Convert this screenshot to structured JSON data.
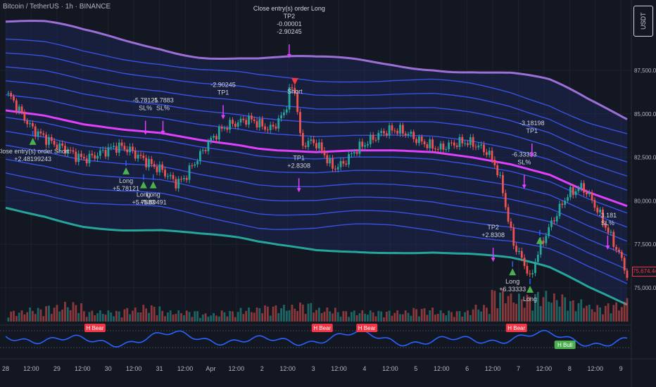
{
  "header": {
    "symbol_title": "Bitcoin / TetherUS · 1h · BINANCE",
    "currency": "USDT"
  },
  "price_axis": {
    "labels": [
      "87,500.00",
      "85,000.00",
      "82,500.00",
      "80,000.00",
      "77,500.00",
      "75,000.00"
    ],
    "current_price": "75,674.44"
  },
  "time_axis": {
    "labels": [
      "28",
      "12:00",
      "29",
      "12:00",
      "30",
      "12:00",
      "31",
      "12:00",
      "Apr",
      "12:00",
      "2",
      "12:00",
      "3",
      "12:00",
      "4",
      "12:00",
      "5",
      "12:00",
      "6",
      "12:00",
      "7",
      "12:00",
      "8",
      "12:00",
      "9"
    ]
  },
  "colors": {
    "bg": "#131722",
    "up": "#26a69a",
    "down": "#ef5350",
    "band": "#3d5afe",
    "mid": "#e040fb",
    "outer_top": "#9c6fd6",
    "outer_bottom": "#26a69a",
    "long": "#4caf50",
    "short": "#f23645",
    "osc": "#2962ff"
  },
  "chart_data": {
    "type": "candlestick",
    "title": "Bitcoin / TetherUS · 1h · BINANCE",
    "ylim": [
      74200,
      90000
    ],
    "close_path": [
      [
        0,
        86200
      ],
      [
        0.3,
        85900
      ],
      [
        0.6,
        85400
      ],
      [
        1,
        84700
      ],
      [
        1.4,
        84100
      ],
      [
        1.8,
        83800
      ],
      [
        2.3,
        83400
      ],
      [
        2.8,
        83100
      ],
      [
        3.2,
        82900
      ],
      [
        3.6,
        82600
      ],
      [
        4,
        82400
      ],
      [
        4.4,
        82500
      ],
      [
        4.8,
        82700
      ],
      [
        5.2,
        82900
      ],
      [
        5.6,
        83100
      ],
      [
        6,
        83100
      ],
      [
        6.4,
        82900
      ],
      [
        6.8,
        82600
      ],
      [
        7.2,
        82300
      ],
      [
        7.6,
        82000
      ],
      [
        8,
        81800
      ],
      [
        8.4,
        81400
      ],
      [
        8.8,
        81000
      ],
      [
        9.2,
        81300
      ],
      [
        9.6,
        82000
      ],
      [
        10,
        82600
      ],
      [
        10.4,
        83300
      ],
      [
        10.8,
        83800
      ],
      [
        11.2,
        84200
      ],
      [
        11.6,
        84400
      ],
      [
        12,
        84500
      ],
      [
        12.4,
        84700
      ],
      [
        12.8,
        84600
      ],
      [
        13.2,
        84300
      ],
      [
        13.6,
        84100
      ],
      [
        14,
        84500
      ],
      [
        14.4,
        85200
      ],
      [
        14.6,
        86200
      ],
      [
        14.8,
        86600
      ],
      [
        15,
        85800
      ],
      [
        15.1,
        83800
      ],
      [
        15.3,
        83200
      ],
      [
        15.6,
        83400
      ],
      [
        16,
        83300
      ],
      [
        16.4,
        82700
      ],
      [
        16.8,
        81900
      ],
      [
        17.2,
        82000
      ],
      [
        17.6,
        82400
      ],
      [
        18,
        82900
      ],
      [
        18.4,
        83200
      ],
      [
        18.8,
        83500
      ],
      [
        19.2,
        83800
      ],
      [
        19.6,
        84000
      ],
      [
        20,
        84100
      ],
      [
        20.4,
        84000
      ],
      [
        20.8,
        83800
      ],
      [
        21.2,
        83500
      ],
      [
        21.6,
        83300
      ],
      [
        22,
        83100
      ],
      [
        22.4,
        83000
      ],
      [
        22.8,
        83200
      ],
      [
        23.2,
        83300
      ],
      [
        23.6,
        83400
      ],
      [
        24,
        83300
      ],
      [
        24.4,
        83100
      ],
      [
        24.8,
        82800
      ],
      [
        25.2,
        82100
      ],
      [
        25.6,
        80600
      ],
      [
        25.9,
        78700
      ],
      [
        26.2,
        77400
      ],
      [
        26.5,
        76800
      ],
      [
        26.8,
        76200
      ],
      [
        27,
        75400
      ],
      [
        27.3,
        76700
      ],
      [
        27.7,
        77800
      ],
      [
        28.1,
        78700
      ],
      [
        28.5,
        79500
      ],
      [
        28.9,
        80300
      ],
      [
        29.3,
        80600
      ],
      [
        29.7,
        80800
      ],
      [
        30.1,
        80200
      ],
      [
        30.5,
        79400
      ],
      [
        30.9,
        78500
      ],
      [
        31.3,
        77600
      ],
      [
        31.6,
        76900
      ],
      [
        31.8,
        76400
      ],
      [
        32,
        75674
      ]
    ],
    "volume_level": [
      0.2,
      0.25,
      0.3,
      0.35,
      0.2,
      0.2,
      0.25,
      0.3,
      0.2,
      0.2,
      0.15,
      0.2,
      0.25,
      0.3,
      0.3,
      0.35,
      0.25,
      0.2,
      0.2,
      0.2,
      0.2,
      0.25,
      0.2,
      0.2,
      0.3,
      0.6,
      0.5,
      0.55,
      0.5,
      0.4,
      0.3,
      0.35,
      0.6
    ],
    "midline": [
      [
        0,
        85200
      ],
      [
        2,
        84900
      ],
      [
        4,
        84400
      ],
      [
        6,
        84100
      ],
      [
        8,
        83900
      ],
      [
        10,
        83500
      ],
      [
        12,
        83200
      ],
      [
        13,
        83000
      ],
      [
        14,
        82900
      ],
      [
        16,
        82800
      ],
      [
        18,
        82900
      ],
      [
        20,
        82900
      ],
      [
        22,
        82800
      ],
      [
        24,
        82500
      ],
      [
        26,
        82100
      ],
      [
        28,
        81500
      ],
      [
        29,
        81000
      ],
      [
        30,
        80500
      ],
      [
        31,
        80100
      ],
      [
        32,
        79700
      ]
    ],
    "band_offsets": [
      -4400,
      -3600,
      -2800,
      -2000,
      -1200,
      -400,
      900,
      1700,
      2500,
      3300,
      4100
    ],
    "outer_top_offset": 5100,
    "outer_bottom_offset": -5600,
    "markers": [
      {
        "x": 1.4,
        "kind": "long-up",
        "price": 83300,
        "label": [
          "Close entry(s) order Short",
          "+2.48199243"
        ]
      },
      {
        "x": 6.2,
        "kind": "long-up",
        "price": 81600,
        "label": [
          "Long",
          "+5.78121"
        ]
      },
      {
        "x": 7.1,
        "kind": "long-up",
        "price": 80800,
        "label": [
          "Long",
          "+5.7883"
        ]
      },
      {
        "x": 7.6,
        "kind": "long-up",
        "price": 80800,
        "label": [
          "Long",
          "+5.80491"
        ]
      },
      {
        "x": 7.2,
        "kind": "stop",
        "price": 84600,
        "label": [
          "-5.78121",
          "SL%"
        ]
      },
      {
        "x": 8.1,
        "kind": "stop",
        "price": 84600,
        "label": [
          "-5.7883",
          "SL%"
        ]
      },
      {
        "x": 11.2,
        "kind": "tp",
        "price": 85500,
        "label": [
          "-2.90245",
          "TP1"
        ]
      },
      {
        "x": 14.6,
        "kind": "short-down",
        "price": 89000,
        "label": [
          "Close entry(s) order Long",
          "TP2",
          "-0.00001",
          "-2.90245"
        ]
      },
      {
        "x": 15.1,
        "kind": "tp-short",
        "price": 81300,
        "label": [
          "TP1",
          "+2.8308"
        ]
      },
      {
        "x": 25.1,
        "kind": "tp",
        "price": 77300,
        "label": [
          "TP2",
          "+2.8308"
        ]
      },
      {
        "x": 26.1,
        "kind": "long-up",
        "price": 75800,
        "label": [
          "Long",
          "+6.33333"
        ]
      },
      {
        "x": 26.7,
        "kind": "stop",
        "price": 81500,
        "label": [
          "-6.33333",
          "SL%"
        ]
      },
      {
        "x": 27.0,
        "kind": "long-up",
        "price": 74800,
        "label": [
          "Long"
        ]
      },
      {
        "x": 27.5,
        "kind": "long-up",
        "price": 77600,
        "label": []
      },
      {
        "x": 27.1,
        "kind": "tp",
        "price": 83300,
        "label": [
          "-3.18198",
          "TP1"
        ]
      },
      {
        "x": 31.0,
        "kind": "stop",
        "price": 78000,
        "label": [
          "-3.181",
          "SL%"
        ]
      }
    ],
    "osc_labels": [
      {
        "x": 4.6,
        "text": "H Bear",
        "kind": "bear"
      },
      {
        "x": 16.3,
        "text": "H Bear",
        "kind": "bear"
      },
      {
        "x": 18.6,
        "text": "H Bear",
        "kind": "bear"
      },
      {
        "x": 26.3,
        "text": "H Bear",
        "kind": "bear"
      },
      {
        "x": 28.8,
        "text": "H Bull",
        "kind": "bull"
      }
    ]
  }
}
